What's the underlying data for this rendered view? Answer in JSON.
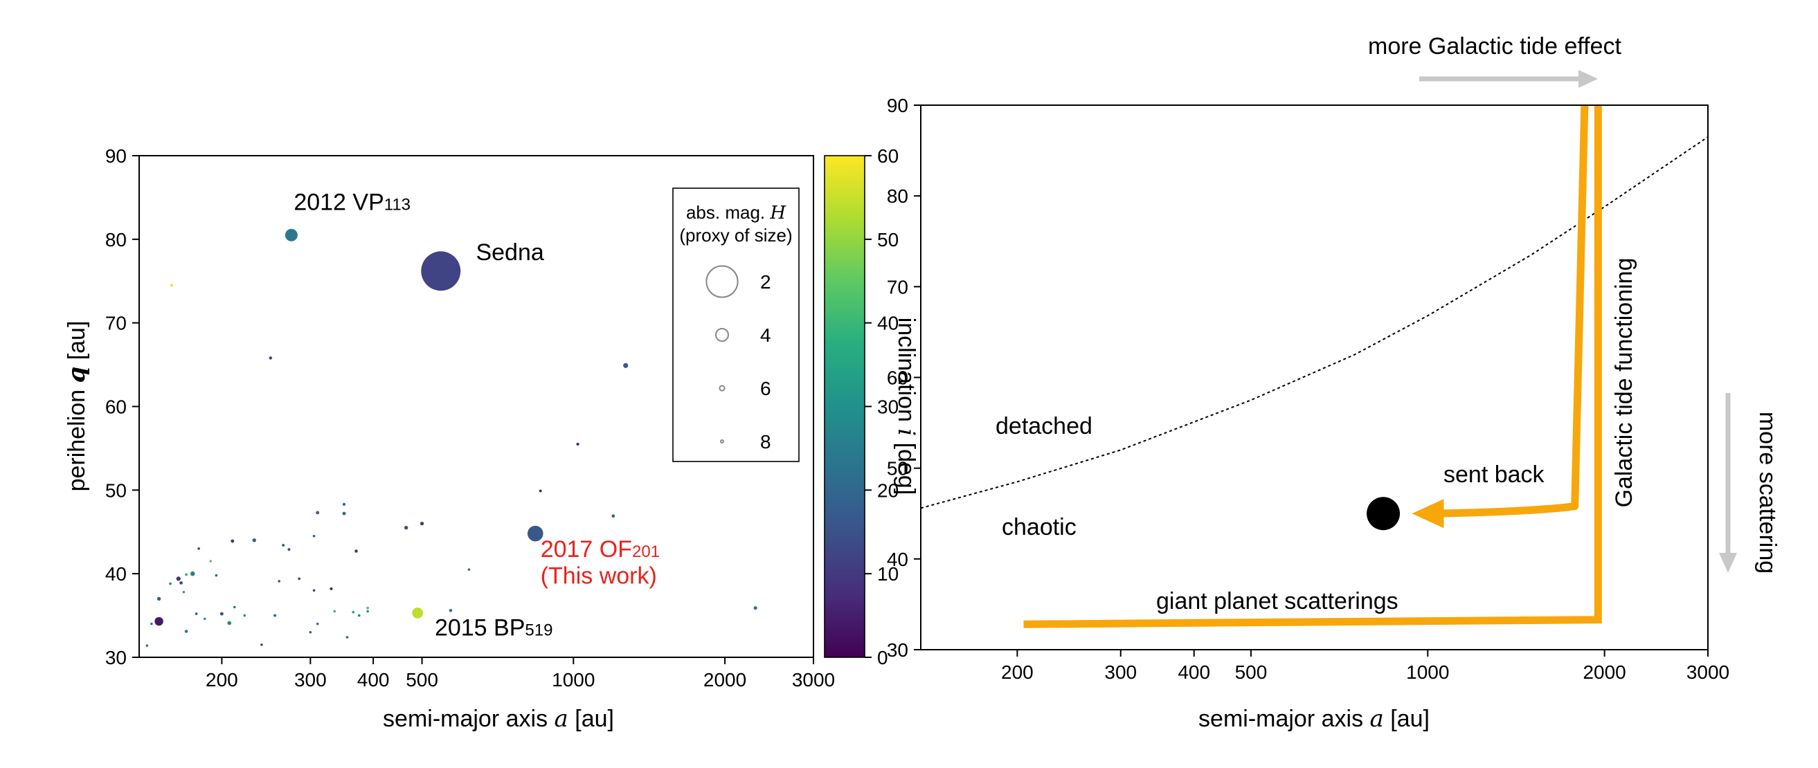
{
  "chart_data": [
    {
      "type": "scatter",
      "xscale": "log",
      "xlim": [
        137,
        3000
      ],
      "ylim": [
        30,
        90
      ],
      "xlabel_prefix": "semi-major axis ",
      "xlabel_var": "a",
      "xlabel_suffix": " [au]",
      "ylabel_prefix": "perihelion ",
      "ylabel_var": "q",
      "ylabel_suffix": " [au]",
      "xticks": [
        {
          "value": 200,
          "label": "200"
        },
        {
          "value": 300,
          "label": "300"
        },
        {
          "value": 400,
          "label": "400"
        },
        {
          "value": 500,
          "label": "500"
        },
        {
          "value": 1000,
          "label": "1000"
        },
        {
          "value": 2000,
          "label": "2000"
        },
        {
          "value": 3000,
          "label": "3000"
        }
      ],
      "yticks": [
        {
          "value": 30,
          "label": "30"
        },
        {
          "value": 40,
          "label": "40"
        },
        {
          "value": 50,
          "label": "50"
        },
        {
          "value": 60,
          "label": "60"
        },
        {
          "value": 70,
          "label": "70"
        },
        {
          "value": 80,
          "label": "80"
        },
        {
          "value": 90,
          "label": "90"
        }
      ],
      "colorbar": {
        "label_prefix": "inclination ",
        "label_var": "i",
        "label_suffix": " [deg]",
        "range": [
          0,
          60
        ],
        "colormap": "viridis",
        "ticks": [
          {
            "value": 0,
            "label": "0"
          },
          {
            "value": 10,
            "label": "10"
          },
          {
            "value": 20,
            "label": "20"
          },
          {
            "value": 30,
            "label": "30"
          },
          {
            "value": 40,
            "label": "40"
          },
          {
            "value": 50,
            "label": "50"
          },
          {
            "value": 60,
            "label": "60"
          }
        ]
      },
      "size_legend": {
        "title_line1": "abs. mag. ",
        "title_var": "H",
        "title_line2": "(proxy of size)",
        "entries": [
          {
            "H": 2,
            "label": "2"
          },
          {
            "H": 4,
            "label": "4"
          },
          {
            "H": 6,
            "label": "6"
          },
          {
            "H": 8,
            "label": "8"
          }
        ]
      },
      "annotations": [
        {
          "text": "2012 VP",
          "sub": "113",
          "x": 278,
          "y": 83.5,
          "color": "#000000"
        },
        {
          "text": "Sedna",
          "x": 640,
          "y": 77.5,
          "color": "#000000"
        },
        {
          "text": "2017 OF",
          "sub": "201",
          "x": 860,
          "y": 42.0,
          "color": "#e8221c"
        },
        {
          "text": "(This work)",
          "x": 860,
          "y": 38.8,
          "color": "#e8221c"
        },
        {
          "text": "2015 BP",
          "sub": "519",
          "x": 530,
          "y": 32.6,
          "color": "#000000"
        }
      ],
      "points": [
        {
          "name": "Sedna",
          "a": 545,
          "q": 76.2,
          "i": 11.9,
          "H": 1.5
        },
        {
          "name": "2012 VP113",
          "a": 275,
          "q": 80.5,
          "i": 24.1,
          "H": 4.0
        },
        {
          "name": "2017 OF201",
          "a": 840,
          "q": 44.8,
          "i": 16.2,
          "H": 3.5
        },
        {
          "name": "2015 BP519",
          "a": 490,
          "q": 35.3,
          "i": 54.1,
          "H": 4.3
        },
        {
          "a": 159,
          "q": 74.5,
          "i": 58,
          "H": 7.2
        },
        {
          "a": 250,
          "q": 65.8,
          "i": 12,
          "H": 7.0
        },
        {
          "a": 1270,
          "q": 64.9,
          "i": 17,
          "H": 6.0
        },
        {
          "a": 1020,
          "q": 55.5,
          "i": 5,
          "H": 7.2
        },
        {
          "a": 860,
          "q": 49.9,
          "i": 5,
          "H": 7.3
        },
        {
          "a": 1200,
          "q": 46.9,
          "i": 20,
          "H": 6.9
        },
        {
          "a": 150,
          "q": 34.3,
          "i": 4,
          "H": 4.8
        },
        {
          "a": 2300,
          "q": 35.9,
          "i": 22,
          "H": 6.7
        },
        {
          "a": 570,
          "q": 35.6,
          "i": 20,
          "H": 7.0
        },
        {
          "a": 500,
          "q": 46.0,
          "i": 12,
          "H": 6.6
        },
        {
          "a": 465,
          "q": 45.5,
          "i": 14,
          "H": 6.6
        },
        {
          "a": 310,
          "q": 47.3,
          "i": 20,
          "H": 6.8
        },
        {
          "a": 350,
          "q": 48.3,
          "i": 22,
          "H": 7.1
        },
        {
          "a": 350,
          "q": 47.2,
          "i": 20,
          "H": 6.8
        },
        {
          "a": 232,
          "q": 44.0,
          "i": 18,
          "H": 6.6
        },
        {
          "a": 210,
          "q": 43.9,
          "i": 10,
          "H": 6.8
        },
        {
          "a": 265,
          "q": 43.4,
          "i": 20,
          "H": 7.2
        },
        {
          "a": 272,
          "q": 42.9,
          "i": 15,
          "H": 7.2
        },
        {
          "a": 305,
          "q": 44.5,
          "i": 18,
          "H": 7.8
        },
        {
          "a": 370,
          "q": 42.7,
          "i": 8,
          "H": 7.0
        },
        {
          "a": 150,
          "q": 37.0,
          "i": 18,
          "H": 6.6
        },
        {
          "a": 158,
          "q": 38.8,
          "i": 30,
          "H": 7.4
        },
        {
          "a": 164,
          "q": 39.4,
          "i": 8,
          "H": 6.3
        },
        {
          "a": 166,
          "q": 38.9,
          "i": 12,
          "H": 6.9
        },
        {
          "a": 170,
          "q": 39.9,
          "i": 40,
          "H": 7.2
        },
        {
          "a": 175,
          "q": 40.0,
          "i": 25,
          "H": 6.2
        },
        {
          "a": 190,
          "q": 41.5,
          "i": 45,
          "H": 7.8
        },
        {
          "a": 195,
          "q": 39.8,
          "i": 20,
          "H": 7.5
        },
        {
          "a": 168,
          "q": 37.8,
          "i": 36,
          "H": 7.6
        },
        {
          "a": 178,
          "q": 35.2,
          "i": 18,
          "H": 7.4
        },
        {
          "a": 185,
          "q": 34.6,
          "i": 32,
          "H": 7.8
        },
        {
          "a": 200,
          "q": 35.2,
          "i": 15,
          "H": 6.8
        },
        {
          "a": 207,
          "q": 34.1,
          "i": 28,
          "H": 6.5
        },
        {
          "a": 212,
          "q": 36.0,
          "i": 22,
          "H": 7.6
        },
        {
          "a": 222,
          "q": 35.0,
          "i": 30,
          "H": 7.9
        },
        {
          "a": 170,
          "q": 33.1,
          "i": 22,
          "H": 7.0
        },
        {
          "a": 142,
          "q": 31.4,
          "i": 25,
          "H": 8.0
        },
        {
          "a": 145,
          "q": 34.0,
          "i": 22,
          "H": 7.9
        },
        {
          "a": 180,
          "q": 43.0,
          "i": 10,
          "H": 8.3
        },
        {
          "a": 240,
          "q": 31.5,
          "i": 10,
          "H": 8.0
        },
        {
          "a": 255,
          "q": 35.0,
          "i": 20,
          "H": 7.3
        },
        {
          "a": 260,
          "q": 39.1,
          "i": 15,
          "H": 7.6
        },
        {
          "a": 285,
          "q": 39.4,
          "i": 8,
          "H": 7.8
        },
        {
          "a": 300,
          "q": 33.0,
          "i": 15,
          "H": 7.6
        },
        {
          "a": 310,
          "q": 34.0,
          "i": 20,
          "H": 7.5
        },
        {
          "a": 305,
          "q": 38.0,
          "i": 12,
          "H": 7.7
        },
        {
          "a": 330,
          "q": 38.2,
          "i": 10,
          "H": 7.1
        },
        {
          "a": 335,
          "q": 35.5,
          "i": 40,
          "H": 8.0
        },
        {
          "a": 355,
          "q": 32.4,
          "i": 18,
          "H": 7.6
        },
        {
          "a": 365,
          "q": 35.4,
          "i": 35,
          "H": 7.4
        },
        {
          "a": 375,
          "q": 35.0,
          "i": 25,
          "H": 7.7
        },
        {
          "a": 390,
          "q": 35.9,
          "i": 45,
          "H": 7.3
        },
        {
          "a": 390,
          "q": 35.5,
          "i": 30,
          "H": 7.5
        },
        {
          "a": 620,
          "q": 40.5,
          "i": 20,
          "H": 7.9
        }
      ]
    },
    {
      "type": "line",
      "xscale": "log",
      "xlim": [
        137,
        3000
      ],
      "ylim": [
        30,
        90
      ],
      "xlabel_prefix": "semi-major axis ",
      "xlabel_var": "a",
      "xlabel_suffix": " [au]",
      "xticks": [
        {
          "value": 200,
          "label": "200"
        },
        {
          "value": 300,
          "label": "300"
        },
        {
          "value": 400,
          "label": "400"
        },
        {
          "value": 500,
          "label": "500"
        },
        {
          "value": 1000,
          "label": "1000"
        },
        {
          "value": 2000,
          "label": "2000"
        },
        {
          "value": 3000,
          "label": "3000"
        }
      ],
      "yticks": [
        {
          "value": 30,
          "label": "30"
        },
        {
          "value": 40,
          "label": "40"
        },
        {
          "value": 50,
          "label": "50"
        },
        {
          "value": 60,
          "label": "60"
        },
        {
          "value": 70,
          "label": "70"
        },
        {
          "value": 80,
          "label": "80"
        },
        {
          "value": 90,
          "label": "90"
        }
      ],
      "boundary_curve": [
        {
          "a": 137,
          "q": 45.6
        },
        {
          "a": 200,
          "q": 48.5
        },
        {
          "a": 300,
          "q": 52.0
        },
        {
          "a": 500,
          "q": 57.5
        },
        {
          "a": 750,
          "q": 62.5
        },
        {
          "a": 1000,
          "q": 66.8
        },
        {
          "a": 1500,
          "q": 73.5
        },
        {
          "a": 2000,
          "q": 78.8
        },
        {
          "a": 3000,
          "q": 86.5
        }
      ],
      "path_scattering": [
        {
          "a": 205,
          "q": 32.8
        },
        {
          "a": 1950,
          "q": 33.3
        },
        {
          "a": 1950,
          "q": 90
        }
      ],
      "path_sent_back": [
        {
          "a": 1850,
          "q": 90
        },
        {
          "a": 1780,
          "q": 45.8
        },
        {
          "a": 1500,
          "q": 45.2
        },
        {
          "a": 940,
          "q": 45.0
        }
      ],
      "object_marker": {
        "a": 840,
        "q": 45.0
      },
      "accent_color": "#f7a70b",
      "arrow_color": "#c8c8c8",
      "labels": {
        "detached": "detached",
        "chaotic": "chaotic",
        "sent_back": "sent back",
        "giant_planet": "giant planet scatterings",
        "galactic_tide": "Galactic tide functioning",
        "more_galactic": "more Galactic tide effect",
        "more_scattering": "more scattering"
      }
    }
  ]
}
